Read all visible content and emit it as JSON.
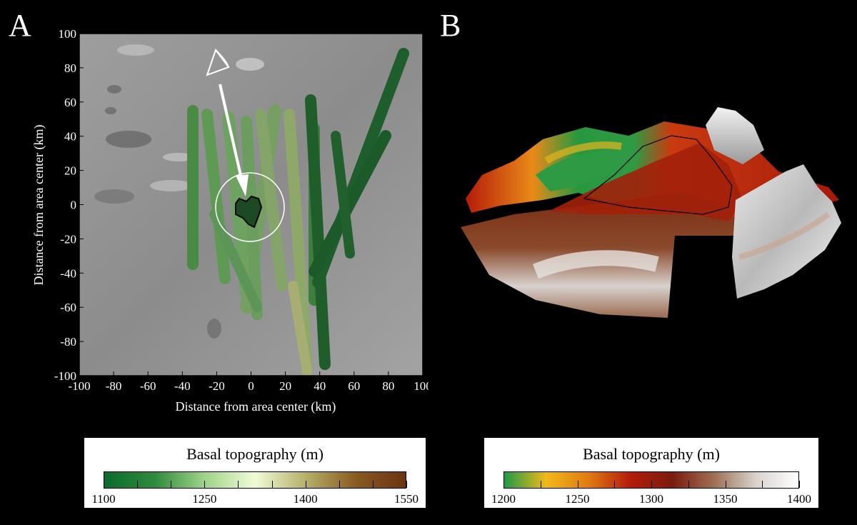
{
  "panelA": {
    "letter": "A",
    "xlabel": "Distance from area center (km)",
    "ylabel": "Distance from area center (km)",
    "xticks": [
      "-100",
      "-80",
      "-60",
      "-40",
      "-20",
      "0",
      "20",
      "40",
      "60",
      "80",
      "100"
    ],
    "yticks": [
      "100",
      "80",
      "60",
      "40",
      "20",
      "0",
      "-20",
      "-40",
      "-60",
      "-80",
      "-100"
    ],
    "colorbar": {
      "title": "Basal topography (m)",
      "ticks": [
        "1100",
        "1250",
        "1400",
        "1550"
      ],
      "colors": [
        "#0b6b2e",
        "#2f8a3c",
        "#9fd48a",
        "#f0fbd6",
        "#b7b16a",
        "#8a5a22",
        "#6b3410"
      ]
    }
  },
  "panelB": {
    "letter": "B",
    "colorbar": {
      "title": "Basal topography (m)",
      "ticks": [
        "1200",
        "1250",
        "1300",
        "1350",
        "1400"
      ],
      "colors": [
        "#1e9a46",
        "#f2b81a",
        "#e07b12",
        "#b51b0a",
        "#7a1c0c",
        "#a07055",
        "#d9d4d0",
        "#ffffff"
      ]
    }
  }
}
